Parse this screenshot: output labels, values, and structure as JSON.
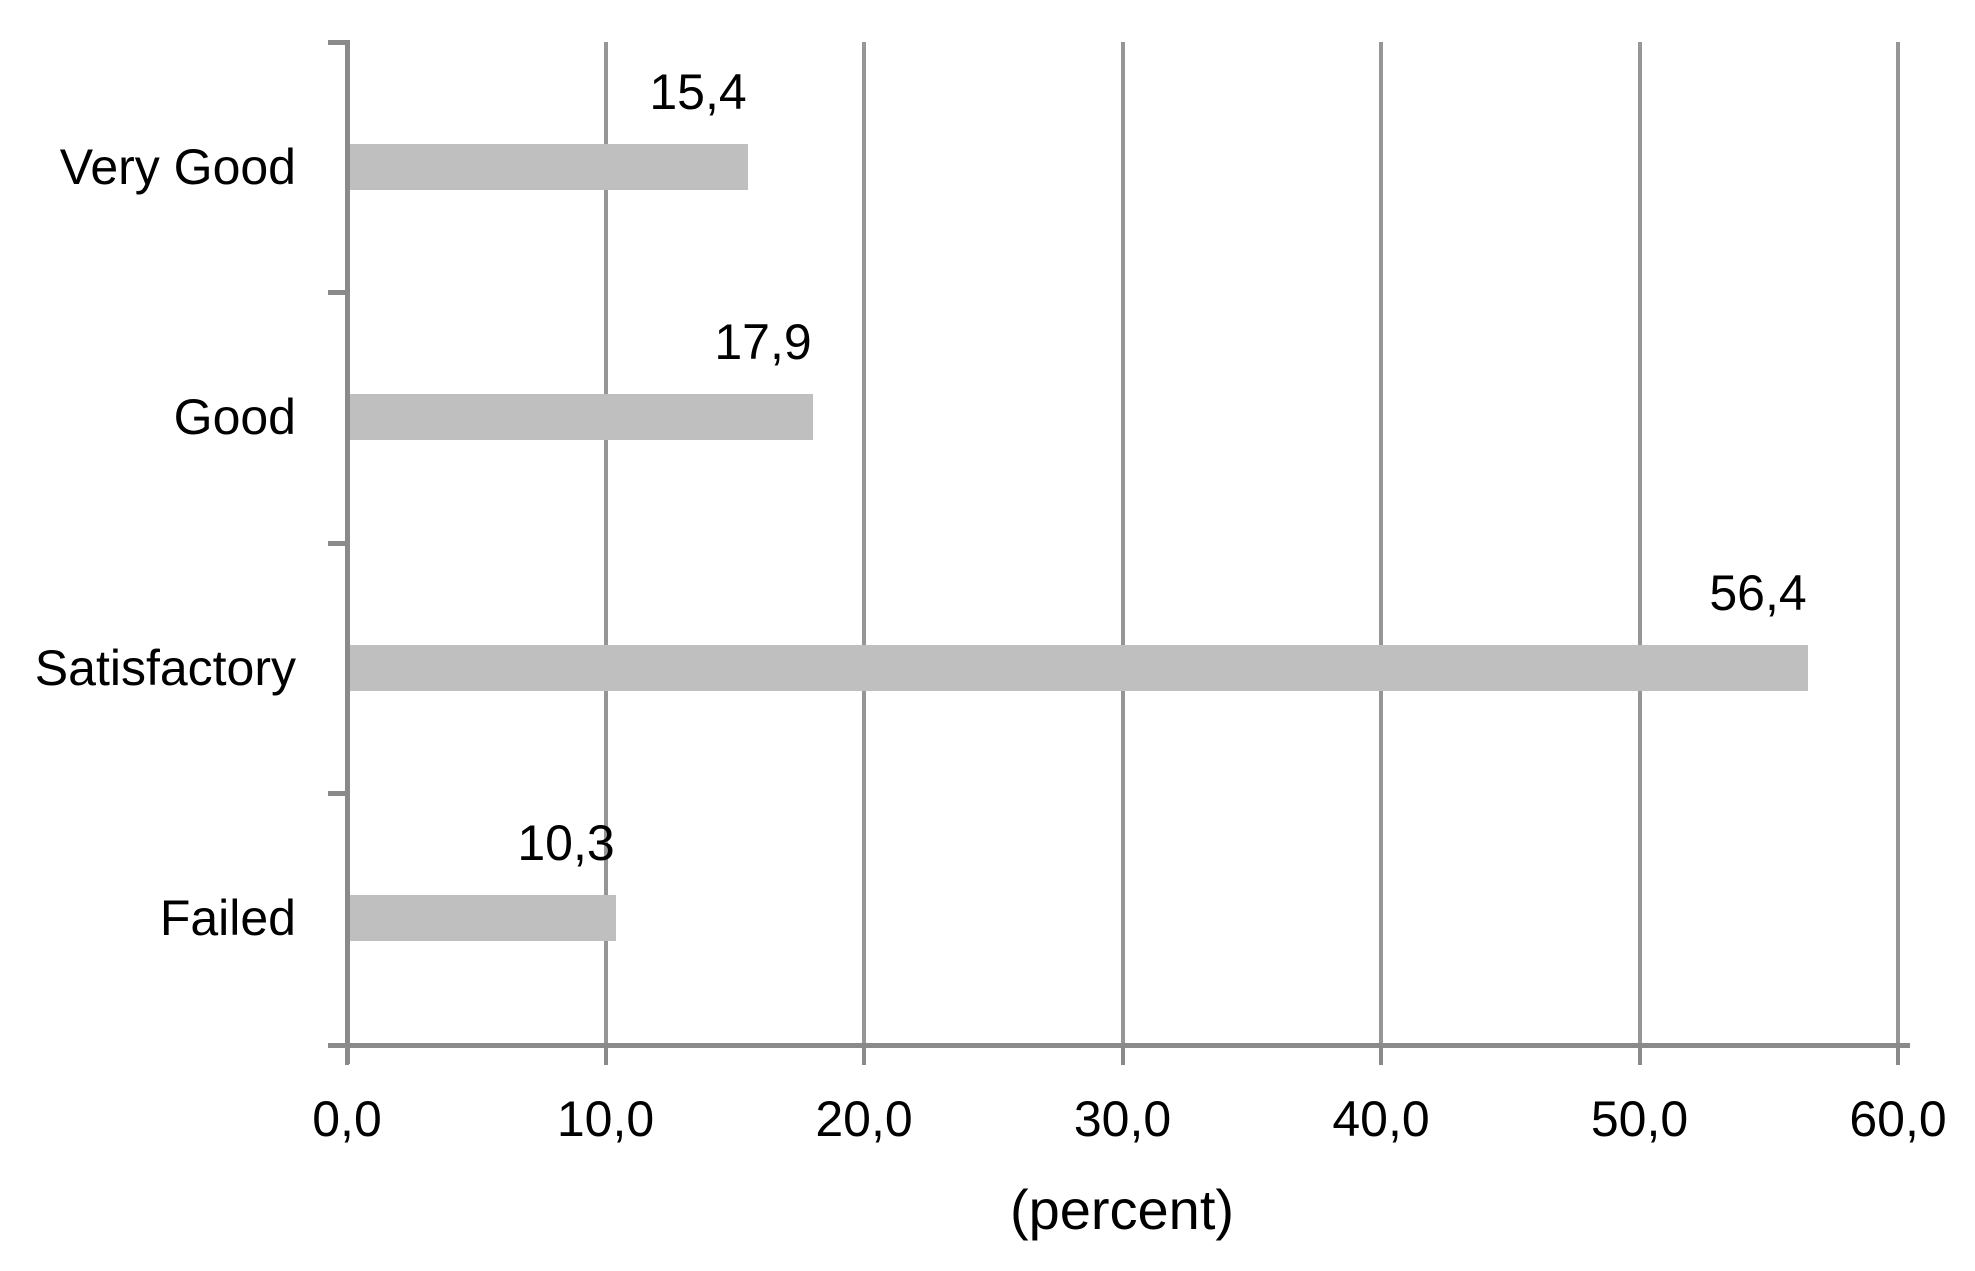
{
  "chart_data": {
    "type": "bar",
    "orientation": "horizontal",
    "title": "",
    "categories": [
      "Very Good",
      "Good",
      "Satisfactory",
      "Failed"
    ],
    "values": [
      15.4,
      17.9,
      56.4,
      10.3
    ],
    "value_labels": [
      "15,4",
      "17,9",
      "56,4",
      "10,3"
    ],
    "xlabel": "(percent)",
    "xlim": [
      0,
      60
    ],
    "x_ticks": [
      0,
      10,
      20,
      30,
      40,
      50,
      60
    ],
    "x_tick_labels": [
      "0,0",
      "10,0",
      "20,0",
      "30,0",
      "40,0",
      "50,0",
      "60,0"
    ],
    "grid": true,
    "legend": false,
    "colors": {
      "bar": "#bfbfbf",
      "gridline": "#969696",
      "axis": "#8a8a8a",
      "text": "#000000",
      "background": "#ffffff"
    }
  }
}
